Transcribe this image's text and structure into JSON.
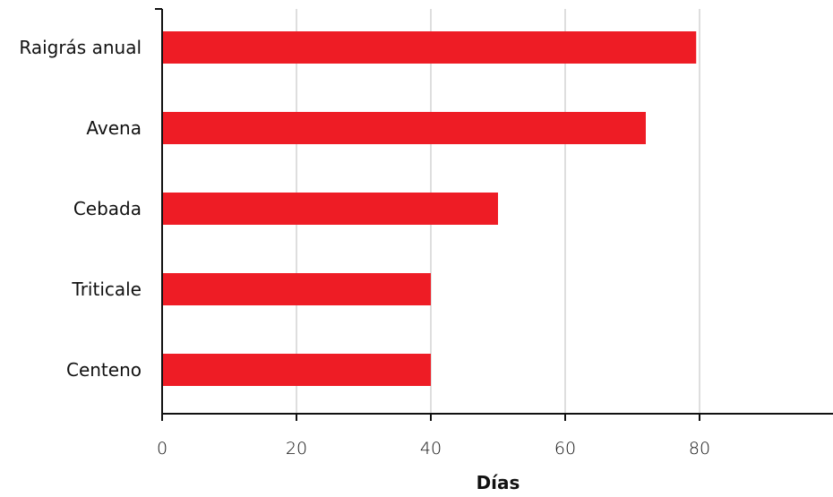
{
  "chart_data": {
    "type": "bar",
    "orientation": "horizontal",
    "categories": [
      "Raigrás anual",
      "Avena",
      "Cebada",
      "Triticale",
      "Centeno"
    ],
    "values": [
      79.5,
      72,
      50,
      40,
      40
    ],
    "xlabel": "Días",
    "ylabel": "",
    "xlim": [
      0,
      100
    ],
    "xticks": [
      0,
      20,
      40,
      60,
      80
    ],
    "xtick_labels": [
      "0",
      "20",
      "40",
      "60",
      "80"
    ],
    "grid": "vertical",
    "legend": "none",
    "bar_color": "#ee1c25"
  }
}
